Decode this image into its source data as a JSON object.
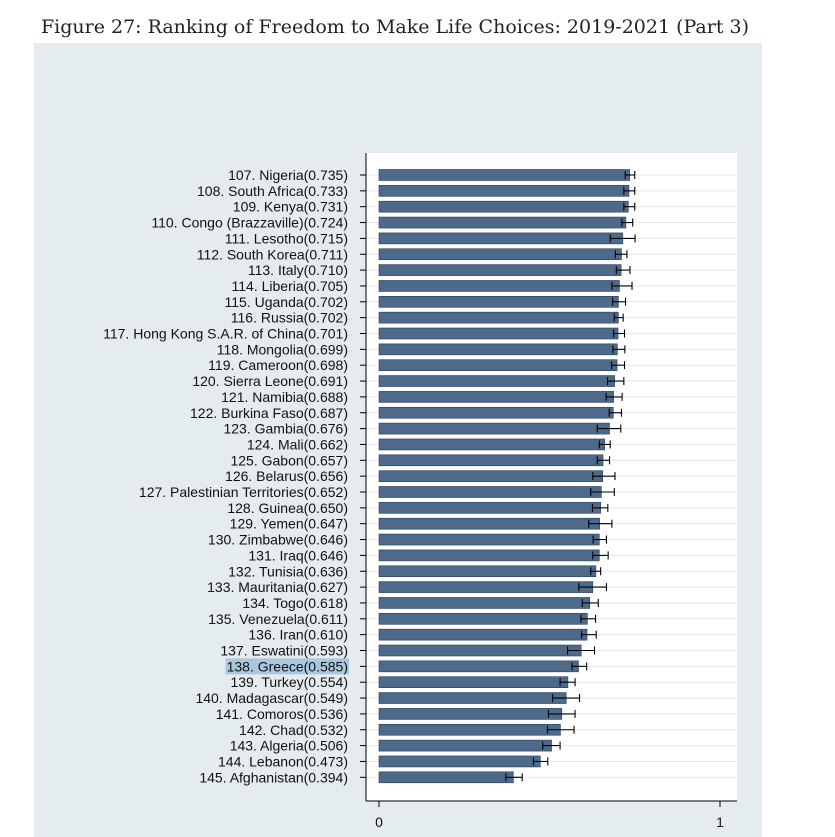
{
  "figure": {
    "title": "Figure 27: Ranking of Freedom to Make Life Choices: 2019-2021 (Part 3)"
  },
  "colors": {
    "bar": "#4d6a8a",
    "bar_edge": "#2c3e54",
    "error": "#000000",
    "panel": "#e4ecf0",
    "highlight": "#a9c8df"
  },
  "chart_data": {
    "type": "bar",
    "orientation": "horizontal",
    "title": "Figure 27: Ranking of Freedom to Make Life Choices: 2019-2021 (Part 3)",
    "xlim": [
      0,
      1
    ],
    "x_ticks": [
      0,
      1
    ],
    "grid": true,
    "highlighted": "138. Greece(0.585)",
    "categories": [
      "107. Nigeria(0.735)",
      "108. South Africa(0.733)",
      "109. Kenya(0.731)",
      "110. Congo (Brazzaville)(0.724)",
      "111. Lesotho(0.715)",
      "112. South Korea(0.711)",
      "113. Italy(0.710)",
      "114. Liberia(0.705)",
      "115. Uganda(0.702)",
      "116. Russia(0.702)",
      "117. Hong Kong S.A.R. of China(0.701)",
      "118. Mongolia(0.699)",
      "119. Cameroon(0.698)",
      "120. Sierra Leone(0.691)",
      "121. Namibia(0.688)",
      "122. Burkina Faso(0.687)",
      "123. Gambia(0.676)",
      "124. Mali(0.662)",
      "125. Gabon(0.657)",
      "126. Belarus(0.656)",
      "127. Palestinian Territories(0.652)",
      "128. Guinea(0.650)",
      "129. Yemen(0.647)",
      "130. Zimbabwe(0.646)",
      "131. Iraq(0.646)",
      "132. Tunisia(0.636)",
      "133. Mauritania(0.627)",
      "134. Togo(0.618)",
      "135. Venezuela(0.611)",
      "136. Iran(0.610)",
      "137. Eswatini(0.593)",
      "138. Greece(0.585)",
      "139. Turkey(0.554)",
      "140. Madagascar(0.549)",
      "141. Comoros(0.536)",
      "142. Chad(0.532)",
      "143. Algeria(0.506)",
      "144. Lebanon(0.473)",
      "145. Afghanistan(0.394)"
    ],
    "values": [
      0.735,
      0.733,
      0.731,
      0.724,
      0.715,
      0.711,
      0.71,
      0.705,
      0.702,
      0.702,
      0.701,
      0.699,
      0.698,
      0.691,
      0.688,
      0.687,
      0.676,
      0.662,
      0.657,
      0.656,
      0.652,
      0.65,
      0.647,
      0.646,
      0.646,
      0.636,
      0.627,
      0.618,
      0.611,
      0.61,
      0.593,
      0.585,
      0.554,
      0.549,
      0.536,
      0.532,
      0.506,
      0.473,
      0.394
    ],
    "ci_low": [
      0.722,
      0.718,
      0.718,
      0.712,
      0.678,
      0.693,
      0.696,
      0.683,
      0.685,
      0.69,
      0.688,
      0.686,
      0.682,
      0.67,
      0.666,
      0.675,
      0.64,
      0.646,
      0.64,
      0.627,
      0.621,
      0.626,
      0.615,
      0.628,
      0.627,
      0.621,
      0.586,
      0.596,
      0.592,
      0.594,
      0.553,
      0.566,
      0.531,
      0.509,
      0.497,
      0.494,
      0.48,
      0.453,
      0.372
    ],
    "ci_high": [
      0.75,
      0.75,
      0.75,
      0.744,
      0.751,
      0.727,
      0.736,
      0.742,
      0.723,
      0.716,
      0.72,
      0.721,
      0.72,
      0.718,
      0.713,
      0.711,
      0.709,
      0.678,
      0.676,
      0.692,
      0.69,
      0.671,
      0.683,
      0.667,
      0.672,
      0.65,
      0.667,
      0.643,
      0.635,
      0.637,
      0.632,
      0.609,
      0.575,
      0.588,
      0.575,
      0.572,
      0.531,
      0.495,
      0.42
    ]
  }
}
